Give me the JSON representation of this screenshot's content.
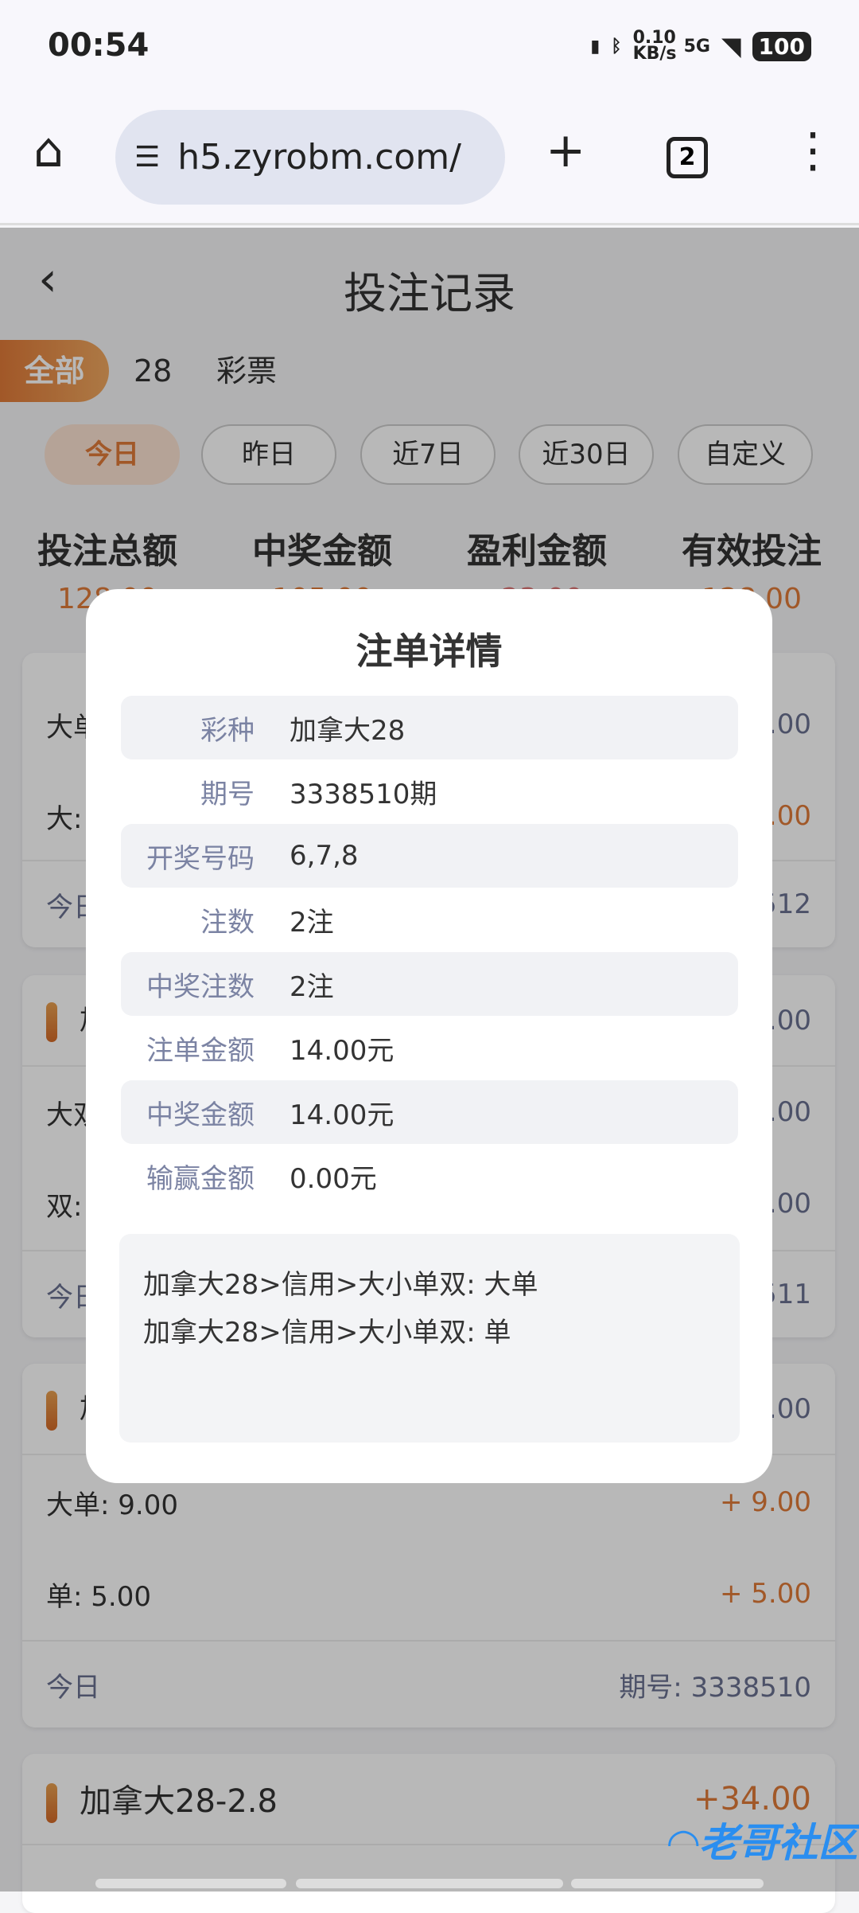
{
  "status_bar": {
    "time": "00:54",
    "net_speed": "0.10 KB/s",
    "network": "5G",
    "battery": "100"
  },
  "browser": {
    "url": "h5.zyrobm.com/",
    "tab_count": "2"
  },
  "header": {
    "title": "投注记录"
  },
  "categories": [
    "全部",
    "28",
    "彩票"
  ],
  "date_filters": [
    {
      "label": "今日",
      "active": true
    },
    {
      "label": "昨日"
    },
    {
      "label": "近7日"
    },
    {
      "label": "近30日"
    },
    {
      "label": "自定义"
    }
  ],
  "stats": [
    {
      "label": "投注总额",
      "value": "128.00"
    },
    {
      "label": "中奖金额",
      "value": "105.00"
    },
    {
      "label": "盈利金额",
      "value": "-23.00"
    },
    {
      "label": "有效投注",
      "value": "128.00"
    }
  ],
  "cards": [
    {
      "rows": [
        {
          "l": "大单",
          "r": ".00"
        },
        {
          "l": "大:",
          "r": ".00"
        }
      ],
      "footer": {
        "l": "今日",
        "r": "512"
      }
    },
    {
      "title": "加",
      "amount": ".00",
      "rows": [
        {
          "l": "大双",
          "r": ".00"
        },
        {
          "l": "双:",
          "r": ".00"
        }
      ],
      "footer": {
        "l": "今日",
        "r": "511"
      }
    },
    {
      "title": "加",
      "amount": ".00",
      "rows": [
        {
          "l": "大单:   9.00",
          "r": "+ 9.00"
        },
        {
          "l": "单:   5.00",
          "r": "+ 5.00"
        }
      ],
      "footer": {
        "l": "今日",
        "r": "期号: 3338510"
      }
    },
    {
      "title": "加拿大28-2.8",
      "amount": "+34.00"
    }
  ],
  "modal": {
    "title": "注单详情",
    "rows": [
      {
        "label": "彩种",
        "value": "加拿大28"
      },
      {
        "label": "期号",
        "value": "3338510期"
      },
      {
        "label": "开奖号码",
        "value": "6,7,8"
      },
      {
        "label": "注数",
        "value": "2注"
      },
      {
        "label": "中奖注数",
        "value": "2注"
      },
      {
        "label": "注单金额",
        "value": "14.00元"
      },
      {
        "label": "中奖金额",
        "value": "14.00元"
      },
      {
        "label": "输赢金额",
        "value": "0.00元"
      }
    ],
    "content": [
      "加拿大28>信用>大小单双: 大单",
      "加拿大28>信用>大小单双: 单"
    ]
  },
  "watermark": "老哥社区",
  "colors": {
    "accent": "#e07a38",
    "label": "#7b83a3"
  }
}
